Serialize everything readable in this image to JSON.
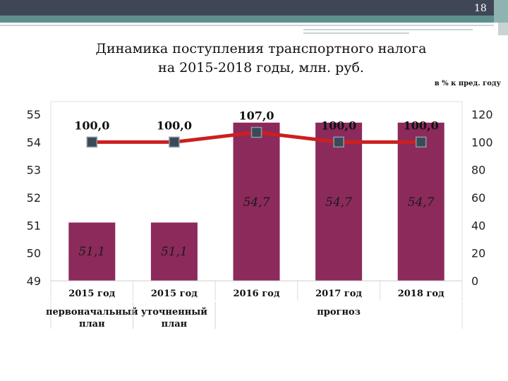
{
  "slide": {
    "page_number": "18",
    "title_line1": "Динамика поступления транспортного налога",
    "title_line2": "на 2015-2018 годы, млн. руб.",
    "right_axis_note": "в % к пред. году"
  },
  "colors": {
    "bar": "#8c2a5c",
    "line": "#cc1f1f",
    "marker": "#3a4a58",
    "header_dark": "#3f4756",
    "header_accent": "#5e8f8c"
  },
  "chart_data": {
    "type": "bar",
    "categories": [
      "2015 год",
      "2015 год",
      "2016 год",
      "2017 год",
      "2018 год"
    ],
    "series": [
      {
        "axis": "left",
        "values": [
          51.1,
          51.1,
          54.7,
          54.7,
          54.7
        ],
        "data_labels": [
          "51,1",
          "51,1",
          "54,7",
          "54,7",
          "54,7"
        ]
      },
      {
        "axis": "right",
        "type": "line",
        "values": [
          100.0,
          100.0,
          107.0,
          100.0,
          100.0
        ],
        "data_labels": [
          "100,0",
          "100,0",
          "107,0",
          "100,0",
          "100,0"
        ]
      }
    ],
    "ylim_left": [
      49,
      55
    ],
    "yticks_left": [
      "49",
      "50",
      "51",
      "52",
      "53",
      "54",
      "55"
    ],
    "ylim_right": [
      0,
      120
    ],
    "yticks_right": [
      "0",
      "20",
      "40",
      "60",
      "80",
      "100",
      "120"
    ],
    "group_labels": [
      {
        "text": "первоначальный\nплан",
        "categories": [
          0
        ]
      },
      {
        "text": "уточненный\nплан",
        "categories": [
          1
        ]
      },
      {
        "text": "прогноз",
        "categories": [
          2,
          3,
          4
        ]
      }
    ],
    "grid": false,
    "legend": "none"
  }
}
